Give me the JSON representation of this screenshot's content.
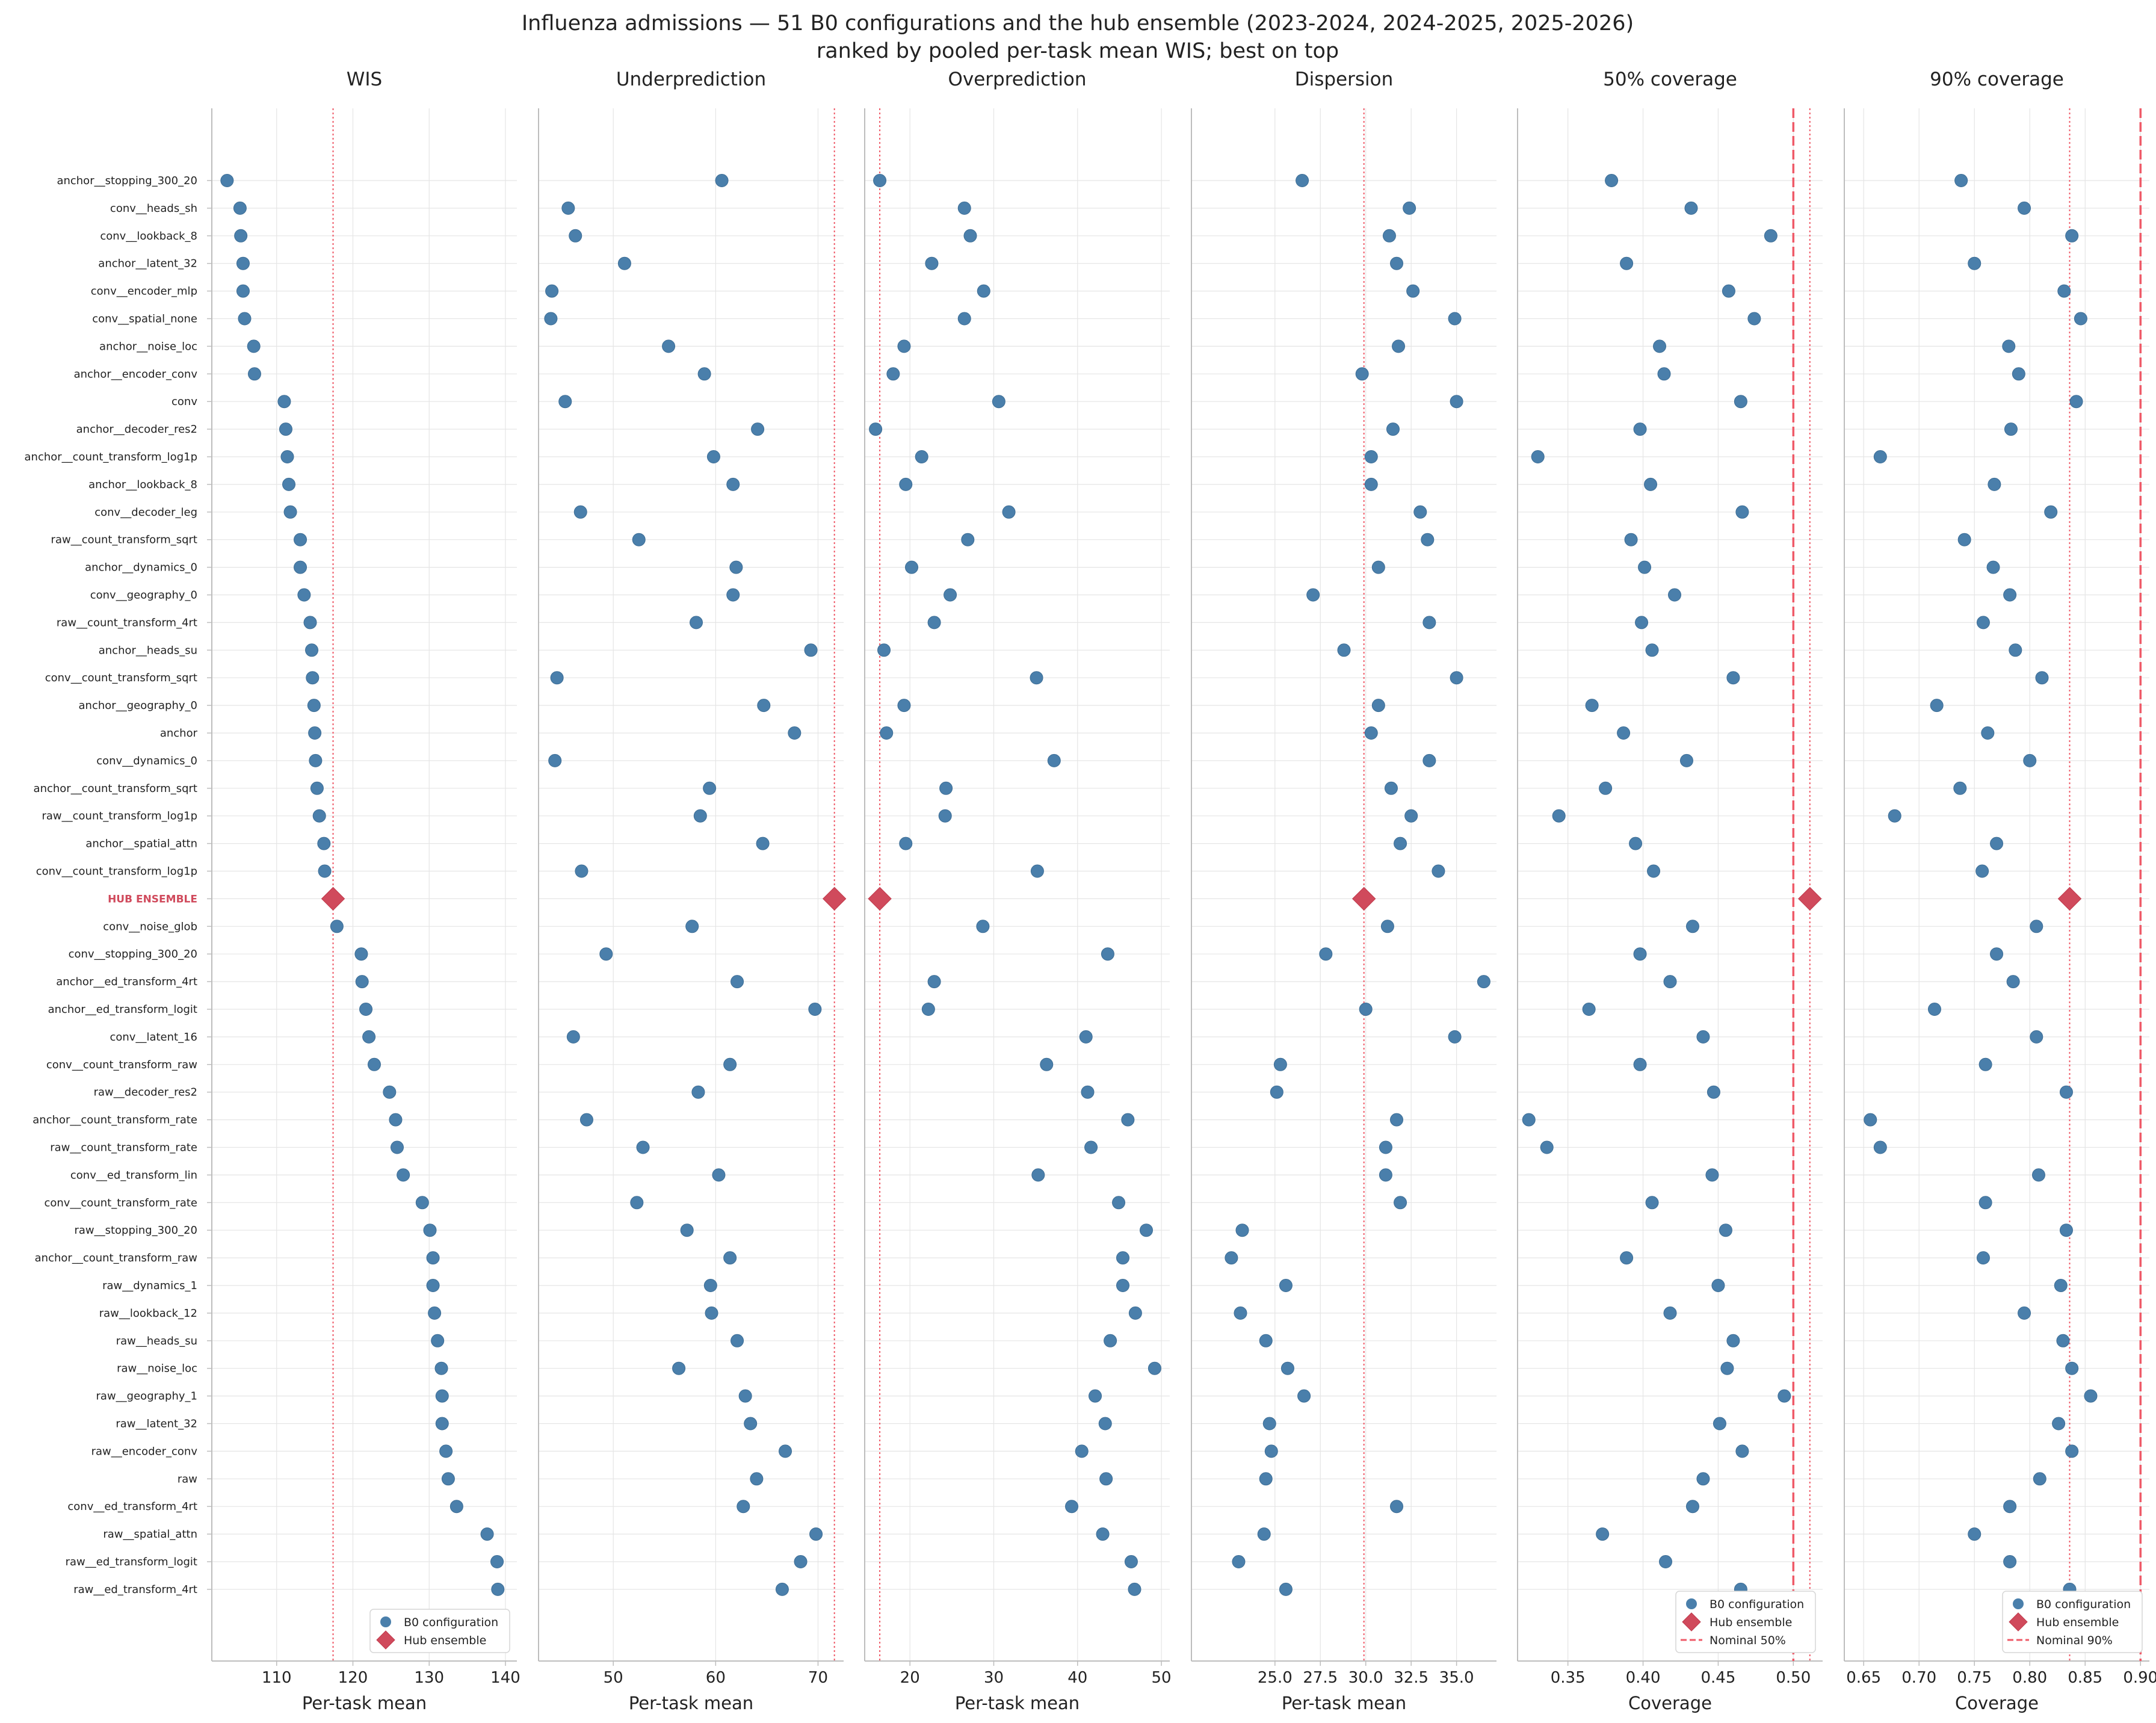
{
  "title_line1": "Influenza admissions — 51 B0 configurations and the hub ensemble (2023-2024, 2024-2025, 2025-2026)",
  "title_line2": "ranked by pooled per-task mean WIS; best on top",
  "colors": {
    "config": "#4a7fab",
    "hub": "#d04a5c",
    "hub_label": "#d04a5c",
    "nominal": "#ef5a68",
    "ref": "#ef5a68",
    "grid": "#e5e5e5",
    "axis": "#bdbdbd",
    "text": "#222222"
  },
  "chart_data": {
    "type": "scatter",
    "rows": [
      "anchor__stopping_300_20",
      "conv__heads_sh",
      "conv__lookback_8",
      "anchor__latent_32",
      "conv__encoder_mlp",
      "conv__spatial_none",
      "anchor__noise_loc",
      "anchor__encoder_conv",
      "conv",
      "anchor__decoder_res2",
      "anchor__count_transform_log1p",
      "anchor__lookback_8",
      "conv__decoder_leg",
      "raw__count_transform_sqrt",
      "anchor__dynamics_0",
      "conv__geography_0",
      "raw__count_transform_4rt",
      "anchor__heads_su",
      "conv__count_transform_sqrt",
      "anchor__geography_0",
      "anchor",
      "conv__dynamics_0",
      "anchor__count_transform_sqrt",
      "raw__count_transform_log1p",
      "anchor__spatial_attn",
      "conv__count_transform_log1p",
      "HUB ENSEMBLE",
      "conv__noise_glob",
      "conv__stopping_300_20",
      "anchor__ed_transform_4rt",
      "anchor__ed_transform_logit",
      "conv__latent_16",
      "conv__count_transform_raw",
      "raw__decoder_res2",
      "anchor__count_transform_rate",
      "raw__count_transform_rate",
      "conv__ed_transform_lin",
      "conv__count_transform_rate",
      "raw__stopping_300_20",
      "anchor__count_transform_raw",
      "raw__dynamics_1",
      "raw__lookback_12",
      "raw__heads_su",
      "raw__noise_loc",
      "raw__geography_1",
      "raw__latent_32",
      "raw__encoder_conv",
      "raw",
      "conv__ed_transform_4rt",
      "raw__spatial_attn",
      "raw__ed_transform_logit",
      "raw__ed_transform_4rt"
    ],
    "hub_row_index": 26,
    "panels": [
      {
        "title": "WIS",
        "xlabel": "Per-task mean",
        "xlim": [
          101.5,
          141.5
        ],
        "ticks": [
          110,
          120,
          130,
          140
        ],
        "tick_labels": [
          "110",
          "120",
          "130",
          "140"
        ],
        "ref": 117.4,
        "nominal": null,
        "values": [
          103.5,
          105.2,
          105.3,
          105.6,
          105.6,
          105.8,
          107.0,
          107.1,
          111.0,
          111.2,
          111.4,
          111.6,
          111.8,
          113.1,
          113.1,
          113.6,
          114.4,
          114.6,
          114.7,
          114.9,
          115.0,
          115.1,
          115.3,
          115.6,
          116.2,
          116.3,
          117.4,
          117.9,
          121.1,
          121.2,
          121.7,
          122.1,
          122.8,
          124.8,
          125.6,
          125.8,
          126.6,
          129.1,
          130.1,
          130.5,
          130.5,
          130.7,
          131.1,
          131.6,
          131.7,
          131.7,
          132.2,
          132.5,
          133.6,
          137.6,
          138.9,
          139.0
        ],
        "legend": [
          "B0 configuration",
          "Hub ensemble"
        ]
      },
      {
        "title": "Underprediction",
        "xlabel": "Per-task mean",
        "xlim": [
          42.7,
          72.5
        ],
        "ticks": [
          50,
          60,
          70
        ],
        "tick_labels": [
          "50",
          "60",
          "70"
        ],
        "ref": 71.6,
        "nominal": null,
        "values": [
          60.6,
          45.6,
          46.3,
          51.1,
          44.0,
          43.9,
          55.4,
          58.9,
          45.3,
          64.1,
          59.8,
          61.7,
          46.8,
          52.5,
          62.0,
          61.7,
          58.1,
          69.3,
          44.5,
          64.7,
          67.7,
          44.3,
          59.4,
          58.5,
          64.6,
          46.9,
          71.6,
          57.7,
          49.3,
          62.1,
          69.7,
          46.1,
          61.4,
          58.3,
          47.4,
          52.9,
          60.3,
          52.3,
          57.2,
          61.4,
          59.5,
          59.6,
          62.1,
          56.4,
          62.9,
          63.4,
          66.8,
          64.0,
          62.7,
          69.8,
          68.3,
          66.5
        ],
        "legend": null
      },
      {
        "title": "Overprediction",
        "xlabel": "Per-task mean",
        "xlim": [
          14.6,
          51.0
        ],
        "ticks": [
          20,
          30,
          40,
          50
        ],
        "tick_labels": [
          "20",
          "30",
          "40",
          "50"
        ],
        "ref": 16.4,
        "nominal": null,
        "values": [
          16.4,
          26.5,
          27.2,
          22.6,
          28.8,
          26.5,
          19.3,
          18.0,
          30.6,
          15.9,
          21.4,
          19.5,
          31.8,
          26.9,
          20.2,
          24.8,
          22.9,
          16.9,
          35.1,
          19.3,
          17.2,
          37.2,
          24.3,
          24.2,
          19.5,
          35.2,
          16.4,
          28.7,
          43.6,
          22.9,
          22.2,
          41.0,
          36.3,
          41.2,
          46.0,
          41.6,
          35.3,
          44.9,
          48.2,
          45.4,
          45.4,
          46.9,
          43.9,
          49.2,
          42.1,
          43.3,
          40.5,
          43.4,
          39.3,
          43.0,
          46.4,
          46.8
        ],
        "legend": null
      },
      {
        "title": "Dispersion",
        "xlabel": "Per-task mean",
        "xlim": [
          20.4,
          37.2
        ],
        "ticks": [
          25.0,
          27.5,
          30.0,
          32.5,
          35.0
        ],
        "tick_labels": [
          "25.0",
          "27.5",
          "30.0",
          "32.5",
          "35.0"
        ],
        "ref": 29.9,
        "nominal": null,
        "values": [
          26.5,
          32.4,
          31.3,
          31.7,
          32.6,
          34.9,
          31.8,
          29.8,
          35.0,
          31.5,
          30.3,
          30.3,
          33.0,
          33.4,
          30.7,
          27.1,
          33.5,
          28.8,
          35.0,
          30.7,
          30.3,
          33.5,
          31.4,
          32.5,
          31.9,
          34.0,
          29.9,
          31.2,
          27.8,
          36.5,
          30.0,
          34.9,
          25.3,
          25.1,
          31.7,
          31.1,
          31.1,
          31.9,
          23.2,
          22.6,
          25.6,
          23.1,
          24.5,
          25.7,
          26.6,
          24.7,
          24.8,
          24.5,
          31.7,
          24.4,
          23.0,
          25.6
        ],
        "legend": null
      },
      {
        "title": "50% coverage",
        "xlabel": "Coverage",
        "xlim": [
          0.3165,
          0.5195
        ],
        "ticks": [
          0.35,
          0.4,
          0.45,
          0.5
        ],
        "tick_labels": [
          "0.35",
          "0.40",
          "0.45",
          "0.50"
        ],
        "ref": 0.511,
        "nominal": 0.5,
        "values": [
          0.379,
          0.432,
          0.485,
          0.389,
          0.457,
          0.474,
          0.411,
          0.414,
          0.465,
          0.398,
          0.33,
          0.405,
          0.466,
          0.392,
          0.401,
          0.421,
          0.399,
          0.406,
          0.46,
          0.366,
          0.387,
          0.429,
          0.375,
          0.344,
          0.395,
          0.407,
          0.511,
          0.433,
          0.398,
          0.418,
          0.364,
          0.44,
          0.398,
          0.447,
          0.324,
          0.336,
          0.446,
          0.406,
          0.455,
          0.389,
          0.45,
          0.418,
          0.46,
          0.456,
          0.494,
          0.451,
          0.466,
          0.44,
          0.433,
          0.373,
          0.415,
          0.465
        ],
        "legend": [
          "B0 configuration",
          "Hub ensemble",
          "Nominal 50%"
        ]
      },
      {
        "title": "90% coverage",
        "xlabel": "Coverage",
        "xlim": [
          0.6325,
          0.908
        ],
        "ticks": [
          0.65,
          0.7,
          0.75,
          0.8,
          0.85,
          0.9
        ],
        "tick_labels": [
          "0.65",
          "0.70",
          "0.75",
          "0.80",
          "0.85",
          "0.90"
        ],
        "ref": 0.836,
        "nominal": 0.9,
        "values": [
          0.738,
          0.795,
          0.838,
          0.75,
          0.831,
          0.846,
          0.781,
          0.79,
          0.842,
          0.783,
          0.665,
          0.768,
          0.819,
          0.741,
          0.767,
          0.782,
          0.758,
          0.787,
          0.811,
          0.716,
          0.762,
          0.8,
          0.737,
          0.678,
          0.77,
          0.757,
          0.836,
          0.806,
          0.77,
          0.785,
          0.714,
          0.806,
          0.76,
          0.833,
          0.656,
          0.665,
          0.808,
          0.76,
          0.833,
          0.758,
          0.828,
          0.795,
          0.83,
          0.838,
          0.855,
          0.826,
          0.838,
          0.809,
          0.782,
          0.75,
          0.782,
          0.836
        ],
        "legend": [
          "B0 configuration",
          "Hub ensemble",
          "Nominal 90%"
        ]
      }
    ]
  }
}
